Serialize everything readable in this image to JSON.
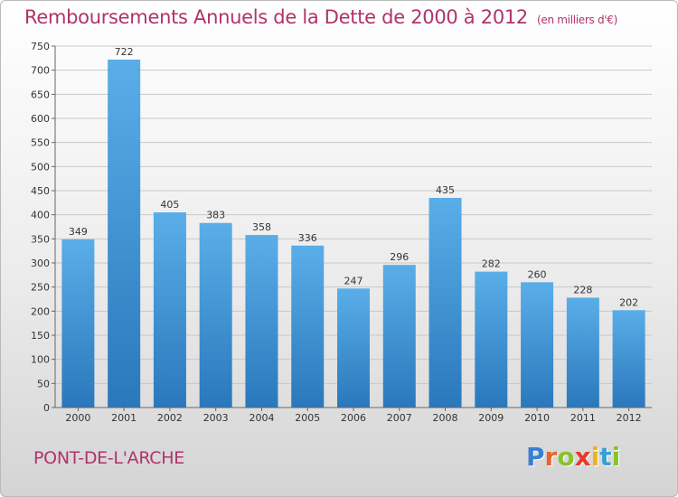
{
  "title": "Remboursements Annuels de la Dette de 2000 à 2012",
  "unit": "(en milliers d'€)",
  "place": "PONT-DE-L'ARCHE",
  "logo": {
    "letters": [
      "P",
      "r",
      "o",
      "x",
      "i",
      "t",
      "i"
    ],
    "colors": [
      "#3a7fd6",
      "#e8642a",
      "#8ac22b",
      "#e83a2a",
      "#f2b01e",
      "#3a9fd6",
      "#8ac22b"
    ]
  },
  "colors": {
    "accent": "#b0336a",
    "bar_top": "#5aaee8",
    "bar_bottom": "#2a78bc"
  },
  "chart_data": {
    "type": "bar",
    "categories": [
      "2000",
      "2001",
      "2002",
      "2003",
      "2004",
      "2005",
      "2006",
      "2007",
      "2008",
      "2009",
      "2010",
      "2011",
      "2012"
    ],
    "values": [
      349,
      722,
      405,
      383,
      358,
      336,
      247,
      296,
      435,
      282,
      260,
      228,
      202
    ],
    "yticks": [
      "0",
      "50",
      "100",
      "150",
      "200",
      "250",
      "300",
      "350",
      "400",
      "450",
      "500",
      "550",
      "600",
      "650",
      "700",
      "750"
    ],
    "ylim": [
      0,
      750
    ],
    "grid": true,
    "legend": "none"
  }
}
